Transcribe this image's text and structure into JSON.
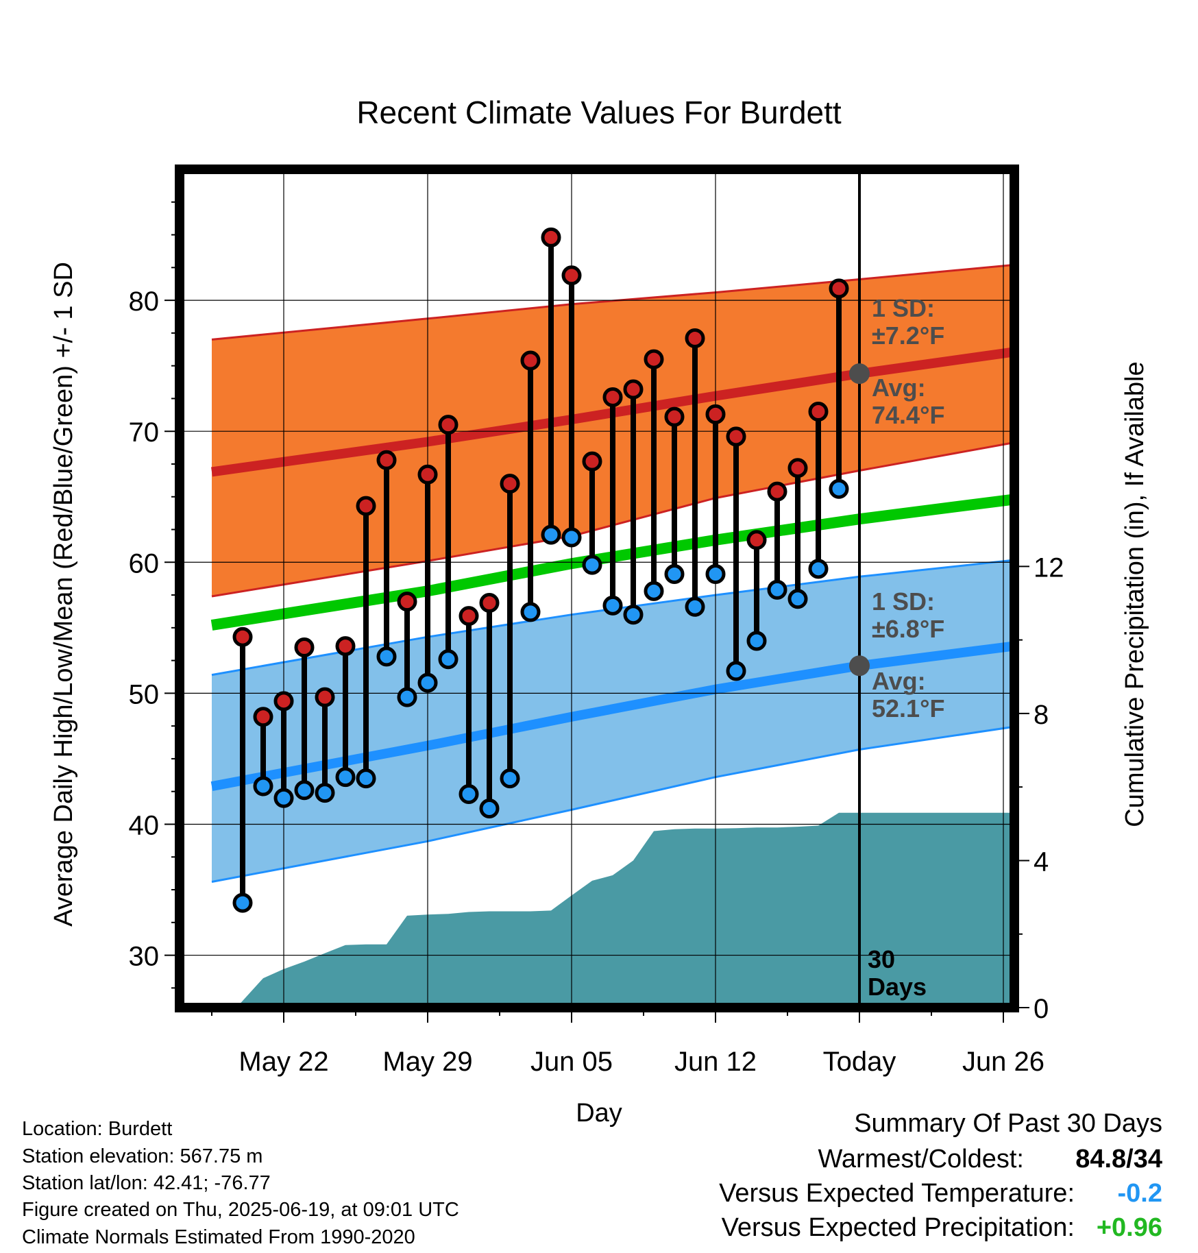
{
  "chart_data": {
    "type": "line",
    "title": "Recent Climate Values For Burdett",
    "xlabel": "Day",
    "ylabel_left": "Average Daily High/Low/Mean (Red/Blue/Green) +/- 1 SD",
    "ylabel_right": "Cumulative Precipitation (in), If Available",
    "y_left_range": [
      26,
      90
    ],
    "y_left_ticks": [
      "30",
      "40",
      "50",
      "60",
      "70",
      "80"
    ],
    "y_right_range": [
      0,
      22.8
    ],
    "y_right_ticks": [
      "0",
      "4",
      "8",
      "12"
    ],
    "x_range_days": [
      -33,
      9
    ],
    "x_ticks": [
      {
        "day": -28,
        "label": "May 22"
      },
      {
        "day": -21,
        "label": "May 29"
      },
      {
        "day": -14,
        "label": "Jun 05"
      },
      {
        "day": -7,
        "label": "Jun 12"
      },
      {
        "day": 0,
        "label": "Today"
      },
      {
        "day": 7,
        "label": "Jun 26"
      }
    ],
    "today_line_label": [
      "30",
      "Days"
    ],
    "high_normal": {
      "mean": [
        [
          -31.5,
          66.9
        ],
        [
          -21,
          69.2
        ],
        [
          -14,
          70.9
        ],
        [
          -7,
          72.7
        ],
        [
          0,
          74.4
        ],
        [
          9.5,
          76.5
        ]
      ],
      "upper": [
        [
          -31.5,
          77.0
        ],
        [
          -21,
          78.6
        ],
        [
          -14,
          79.7
        ],
        [
          -7,
          80.6
        ],
        [
          0,
          81.6
        ],
        [
          9.5,
          83.0
        ]
      ],
      "lower": [
        [
          -31.5,
          57.4
        ],
        [
          -21,
          60.1
        ],
        [
          -14,
          62.0
        ],
        [
          -7,
          64.9
        ],
        [
          0,
          67.0
        ],
        [
          9.5,
          69.7
        ]
      ],
      "sd_label": [
        "1 SD:",
        "±7.2",
        "°F"
      ],
      "avg_label": [
        "Avg:",
        "74.4",
        "°F"
      ],
      "avg_value": 74.4
    },
    "low_normal": {
      "mean": [
        [
          -31.5,
          42.9
        ],
        [
          -21,
          46.0
        ],
        [
          -14,
          48.2
        ],
        [
          -7,
          50.3
        ],
        [
          0,
          52.1
        ],
        [
          9.5,
          54.0
        ]
      ],
      "upper": [
        [
          -31.5,
          51.4
        ],
        [
          -21,
          54.3
        ],
        [
          -14,
          56.0
        ],
        [
          -7,
          57.5
        ],
        [
          0,
          58.9
        ],
        [
          9.5,
          60.5
        ]
      ],
      "lower": [
        [
          -31.5,
          35.6
        ],
        [
          -21,
          38.7
        ],
        [
          -14,
          41.1
        ],
        [
          -7,
          43.6
        ],
        [
          0,
          45.7
        ],
        [
          9.5,
          47.9
        ]
      ],
      "sd_label": [
        "1 SD:",
        "±6.8",
        "°F"
      ],
      "avg_label": [
        "Avg:",
        "52.1",
        "°F"
      ],
      "avg_value": 52.1
    },
    "mean_normal": [
      [
        -31.5,
        55.2
      ],
      [
        -21,
        57.8
      ],
      [
        -14,
        59.9
      ],
      [
        -7,
        61.7
      ],
      [
        0,
        63.3
      ],
      [
        9.5,
        65.2
      ]
    ],
    "daily": [
      {
        "day": -30,
        "high": 54.3,
        "low": 34.0
      },
      {
        "day": -29,
        "high": 48.2,
        "low": 42.9
      },
      {
        "day": -28,
        "high": 49.4,
        "low": 42.0
      },
      {
        "day": -27,
        "high": 53.5,
        "low": 42.6
      },
      {
        "day": -26,
        "high": 49.7,
        "low": 42.4
      },
      {
        "day": -25,
        "high": 53.6,
        "low": 43.6
      },
      {
        "day": -24,
        "high": 64.3,
        "low": 43.5
      },
      {
        "day": -23,
        "high": 67.8,
        "low": 52.8
      },
      {
        "day": -22,
        "high": 57.0,
        "low": 49.7
      },
      {
        "day": -21,
        "high": 66.7,
        "low": 50.8
      },
      {
        "day": -20,
        "high": 70.5,
        "low": 52.6
      },
      {
        "day": -19,
        "high": 55.9,
        "low": 42.3
      },
      {
        "day": -18,
        "high": 56.9,
        "low": 41.2
      },
      {
        "day": -17,
        "high": 66.0,
        "low": 43.5
      },
      {
        "day": -16,
        "high": 75.4,
        "low": 56.2
      },
      {
        "day": -15,
        "high": 84.8,
        "low": 62.1
      },
      {
        "day": -14,
        "high": 81.9,
        "low": 61.9
      },
      {
        "day": -13,
        "high": 67.7,
        "low": 59.8
      },
      {
        "day": -12,
        "high": 72.6,
        "low": 56.7
      },
      {
        "day": -11,
        "high": 73.2,
        "low": 56.0
      },
      {
        "day": -10,
        "high": 75.5,
        "low": 57.8
      },
      {
        "day": -9,
        "high": 71.1,
        "low": 59.1
      },
      {
        "day": -8,
        "high": 77.1,
        "low": 56.6
      },
      {
        "day": -7,
        "high": 71.3,
        "low": 59.1
      },
      {
        "day": -6,
        "high": 69.6,
        "low": 51.7
      },
      {
        "day": -5,
        "high": 61.7,
        "low": 54.0
      },
      {
        "day": -4,
        "high": 65.4,
        "low": 57.9
      },
      {
        "day": -3,
        "high": 67.2,
        "low": 57.2
      },
      {
        "day": -2,
        "high": 71.5,
        "low": 59.5
      },
      {
        "day": -1,
        "high": 80.9,
        "low": 65.6
      }
    ],
    "precip_cumulative": [
      [
        -30.3,
        0.0
      ],
      [
        -29,
        0.8
      ],
      [
        -28,
        1.05
      ],
      [
        -27,
        1.25
      ],
      [
        -26,
        1.48
      ],
      [
        -25,
        1.7
      ],
      [
        -24,
        1.72
      ],
      [
        -23,
        1.72
      ],
      [
        -22,
        2.5
      ],
      [
        -21,
        2.53
      ],
      [
        -20,
        2.55
      ],
      [
        -19,
        2.6
      ],
      [
        -18,
        2.62
      ],
      [
        -17,
        2.62
      ],
      [
        -16,
        2.62
      ],
      [
        -15,
        2.64
      ],
      [
        -14,
        3.05
      ],
      [
        -13,
        3.45
      ],
      [
        -12,
        3.6
      ],
      [
        -11,
        4.0
      ],
      [
        -10,
        4.8
      ],
      [
        -9,
        4.85
      ],
      [
        -8,
        4.87
      ],
      [
        -7,
        4.87
      ],
      [
        -6,
        4.88
      ],
      [
        -5,
        4.9
      ],
      [
        -4,
        4.9
      ],
      [
        -3,
        4.92
      ],
      [
        -2,
        4.95
      ],
      [
        -1,
        5.3
      ],
      [
        0,
        5.3
      ],
      [
        9.5,
        5.3
      ]
    ],
    "grid": true,
    "legend": "none"
  },
  "meta": {
    "location": "Location: Burdett",
    "elevation": "Station elevation: 567.75 m",
    "latlon": "Station lat/lon: 42.41; -76.77",
    "created": "Figure created on Thu, 2025-06-19, at 09:01 UTC",
    "normals": "Climate Normals Estimated From 1990-2020"
  },
  "summary": {
    "title": "Summary Of Past 30 Days",
    "warm_cold_label": "Warmest/Coldest:",
    "warm_cold_value": "84.8/34",
    "temp_label": "Versus Expected Temperature:",
    "temp_value": "-0.2",
    "precip_label": "Versus Expected Precipitation:",
    "precip_value": "+0.96"
  },
  "colors": {
    "high_band": "#f47a2e",
    "high_line": "#cc2222",
    "low_band": "#82c0ea",
    "low_line": "#1e90ff",
    "mean_line": "#00c800",
    "precip_fill": "#4a9aa4",
    "high_dot": "#cc2222",
    "low_dot": "#2196f3",
    "normal_text": "#4d4d4d",
    "temp_anomaly": "#2196f3",
    "precip_anomaly": "#22b822"
  }
}
